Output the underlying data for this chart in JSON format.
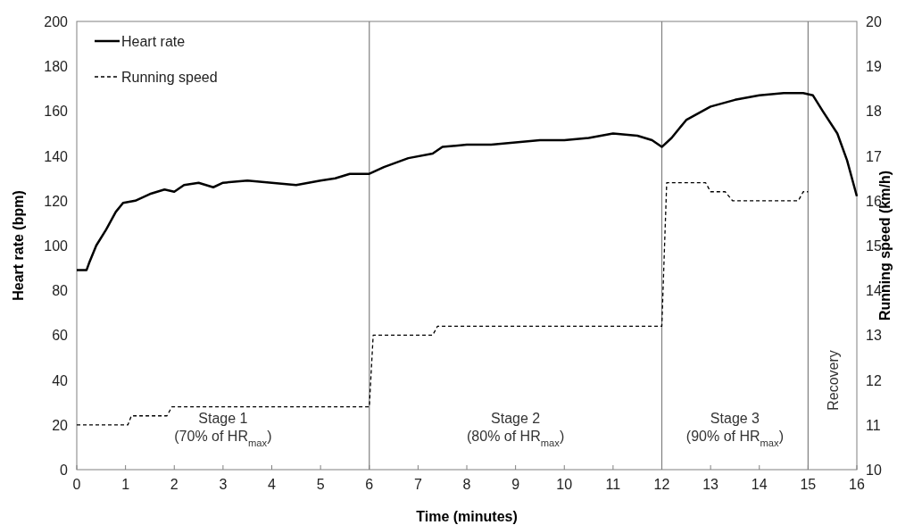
{
  "chart_data": {
    "type": "line",
    "xlabel": "Time (minutes)",
    "ylabel": "Heart rate (bpm)",
    "y2label": "Running speed (km/h)",
    "xlim": [
      0,
      16
    ],
    "xticks": [
      0,
      1,
      2,
      3,
      4,
      5,
      6,
      7,
      8,
      9,
      10,
      11,
      12,
      13,
      14,
      15,
      16
    ],
    "ylim": [
      0,
      200
    ],
    "yticks": [
      0,
      20,
      40,
      60,
      80,
      100,
      120,
      140,
      160,
      180,
      200
    ],
    "y2lim": [
      10,
      20
    ],
    "y2ticks": [
      10,
      11,
      12,
      13,
      14,
      15,
      16,
      17,
      18,
      19,
      20
    ],
    "legend": "top left",
    "grid": false,
    "series": [
      {
        "name": "Heart rate",
        "color": "#000000",
        "line_style": "solid",
        "x": [
          0,
          0.2,
          0.25,
          0.4,
          0.6,
          0.8,
          0.95,
          1.2,
          1.5,
          1.8,
          2.0,
          2.2,
          2.5,
          2.8,
          3.0,
          3.5,
          4.0,
          4.5,
          5.0,
          5.3,
          5.6,
          6.0,
          6.3,
          6.8,
          7.3,
          7.5,
          8.0,
          8.5,
          9.0,
          9.5,
          10.0,
          10.5,
          11.0,
          11.5,
          11.8,
          12.0,
          12.2,
          12.5,
          13.0,
          13.5,
          14.0,
          14.5,
          14.9,
          15.1,
          15.3,
          15.6,
          15.8,
          16.0
        ],
        "values": [
          89,
          89,
          92,
          100,
          107,
          115,
          119,
          120,
          123,
          125,
          124,
          127,
          128,
          126,
          128,
          129,
          128,
          127,
          129,
          130,
          132,
          132,
          135,
          139,
          141,
          144,
          145,
          145,
          146,
          147,
          147,
          148,
          150,
          149,
          147,
          144,
          148,
          156,
          162,
          165,
          167,
          168,
          168,
          167,
          160,
          150,
          138,
          122
        ]
      },
      {
        "name": "Running speed",
        "color": "#000000",
        "line_style": "dashed",
        "axis": "y2",
        "x": [
          0,
          1.05,
          1.12,
          1.85,
          1.95,
          6.0,
          6.08,
          7.3,
          7.4,
          12.0,
          12.1,
          12.9,
          13.0,
          13.3,
          13.45,
          14.8,
          14.9,
          15.0
        ],
        "values": [
          11.0,
          11.0,
          11.2,
          11.2,
          11.4,
          11.4,
          13.0,
          13.0,
          13.2,
          13.2,
          16.4,
          16.4,
          16.2,
          16.2,
          16.0,
          16.0,
          16.2,
          16.2
        ]
      }
    ],
    "ref_lines": [
      {
        "axis": "x",
        "value": 6,
        "color": "#808080"
      },
      {
        "axis": "x",
        "value": 12,
        "color": "#808080"
      },
      {
        "axis": "x",
        "value": 15,
        "color": "#808080"
      }
    ],
    "annotations": [
      "Stage 1\n(70% of HR$_{max}$)",
      "Stage 2\n(80% of HR$_{max}$)",
      "Stage 3\n(90% of HR$_{max}$)",
      "Recovery"
    ]
  }
}
